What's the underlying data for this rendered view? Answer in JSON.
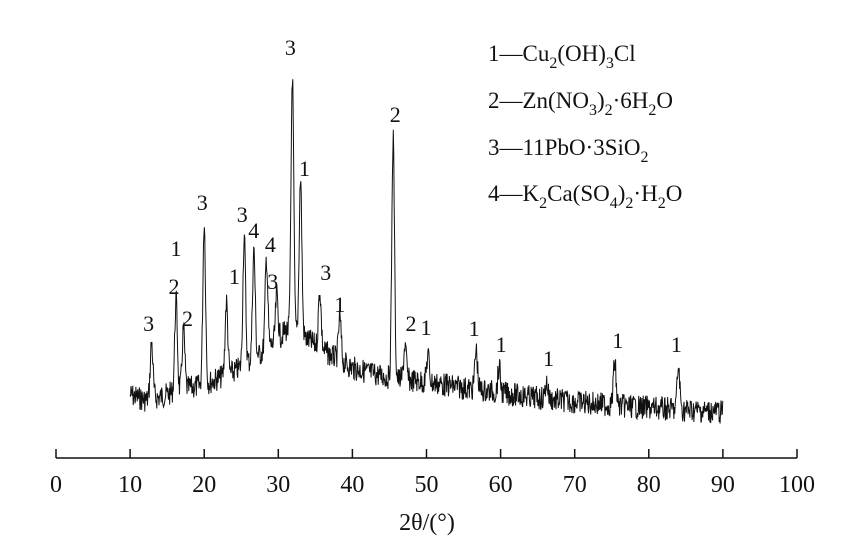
{
  "chart_data": {
    "type": "line",
    "title": "",
    "xlabel": "2θ/(°)",
    "ylabel": "",
    "xlim": [
      0,
      100
    ],
    "x_ticks": [
      0,
      10,
      20,
      30,
      40,
      50,
      60,
      70,
      80,
      90,
      100
    ],
    "y_axis_shown": false,
    "grid": false,
    "legend_placement": "top-right",
    "legend": [
      {
        "id": "1",
        "text": "1—Cu₂(OH)₃Cl"
      },
      {
        "id": "2",
        "text": "2—Zn(NO₃)₂·6H₂O"
      },
      {
        "id": "3",
        "text": "3—11PbO·3SiO₂"
      },
      {
        "id": "4",
        "text": "4—K₂Ca(SO₄)₂·H₂O"
      }
    ],
    "pattern": {
      "x_range": [
        10,
        90
      ],
      "baseline": [
        [
          10,
          395
        ],
        [
          12,
          400
        ],
        [
          14,
          397
        ],
        [
          16,
          392
        ],
        [
          18,
          388
        ],
        [
          20,
          385
        ],
        [
          22,
          378
        ],
        [
          24,
          372
        ],
        [
          26,
          362
        ],
        [
          28,
          352
        ],
        [
          30,
          340
        ],
        [
          31,
          330
        ],
        [
          33,
          335
        ],
        [
          35,
          345
        ],
        [
          37,
          355
        ],
        [
          40,
          368
        ],
        [
          45,
          378
        ],
        [
          50,
          382
        ],
        [
          55,
          388
        ],
        [
          60,
          393
        ],
        [
          65,
          398
        ],
        [
          70,
          402
        ],
        [
          75,
          405
        ],
        [
          80,
          408
        ],
        [
          85,
          410
        ],
        [
          90,
          412
        ]
      ],
      "noise_amplitude": 12,
      "peaks": [
        {
          "x": 12.9,
          "top": 343,
          "label": "3"
        },
        {
          "x": 16.2,
          "top": 300,
          "label": "1"
        },
        {
          "x": 16.2,
          "top": 300,
          "label": "2"
        },
        {
          "x": 17.2,
          "top": 330,
          "label": "2"
        },
        {
          "x": 20.0,
          "top": 222,
          "label": "3"
        },
        {
          "x": 23.0,
          "top": 302,
          "label": "1"
        },
        {
          "x": 25.4,
          "top": 236,
          "label": "3"
        },
        {
          "x": 26.7,
          "top": 250,
          "label": "4"
        },
        {
          "x": 28.4,
          "top": 258,
          "label": "4"
        },
        {
          "x": 29.8,
          "top": 295,
          "label": "3"
        },
        {
          "x": 31.9,
          "top": 75,
          "label": "3"
        },
        {
          "x": 33.0,
          "top": 178,
          "label": "1"
        },
        {
          "x": 35.6,
          "top": 290,
          "label": "3"
        },
        {
          "x": 38.3,
          "top": 318,
          "label": "1"
        },
        {
          "x": 45.5,
          "top": 138,
          "label": "2"
        },
        {
          "x": 47.1,
          "top": 345,
          "label": "2"
        },
        {
          "x": 50.2,
          "top": 355,
          "label": "1"
        },
        {
          "x": 56.7,
          "top": 350,
          "label": "1"
        },
        {
          "x": 59.8,
          "top": 368,
          "label": "1"
        },
        {
          "x": 66.2,
          "top": 382,
          "label": "1"
        },
        {
          "x": 75.4,
          "top": 362,
          "label": "1"
        },
        {
          "x": 84.0,
          "top": 368,
          "label": "1"
        }
      ]
    }
  }
}
